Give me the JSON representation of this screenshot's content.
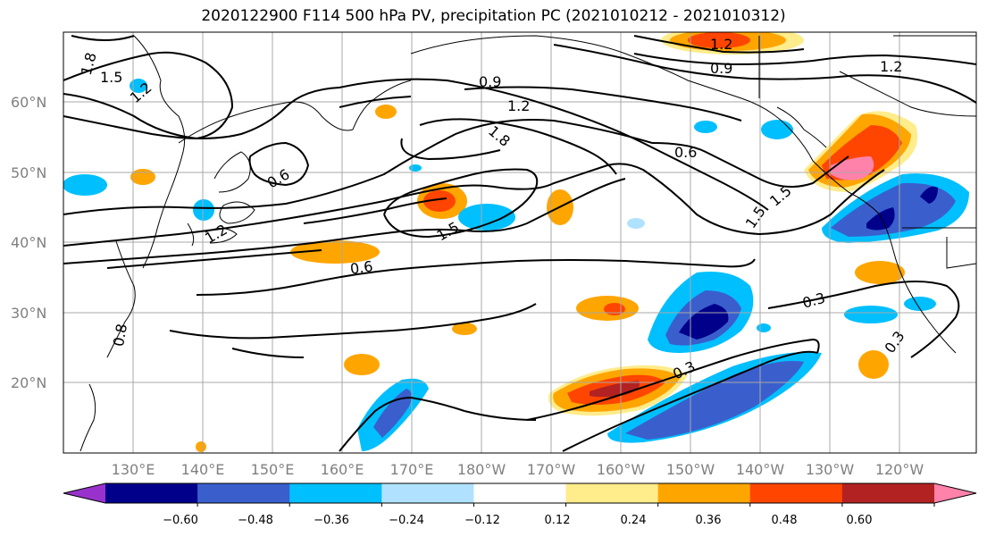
{
  "title": "2020122900 F114 500 hPa PV, precipitation PC (2021010212 - 2021010312)",
  "map": {
    "lat_labels": [
      "60°N",
      "50°N",
      "40°N",
      "30°N",
      "20°N"
    ],
    "lon_labels": [
      "130°E",
      "140°E",
      "150°E",
      "160°E",
      "170°E",
      "180°W",
      "170°W",
      "160°W",
      "150°W",
      "140°W",
      "130°W",
      "120°W"
    ],
    "lon_range": [
      120,
      251
    ],
    "lat_range": [
      10,
      70
    ],
    "contour_labels": [
      "1.8",
      "1.5",
      "1.2",
      "0.6",
      "0.9",
      "1.2",
      "1.8",
      "1.2",
      "0.9",
      "1.2",
      "0.6",
      "1.5",
      "1.5",
      "1.2",
      "1.5",
      "0.6",
      "0.3",
      "0.3",
      "0.3",
      "0.8"
    ]
  },
  "colorbar": {
    "ticks": [
      "−0.60",
      "−0.48",
      "−0.36",
      "−0.24",
      "−0.12",
      "0.12",
      "0.24",
      "0.36",
      "0.48",
      "0.60"
    ],
    "colors": [
      "#9932CC",
      "#00008B",
      "#3A5FCD",
      "#00BFFF",
      "#B0E2FF",
      "#FFFFFF",
      "#FFEC8B",
      "#FFA500",
      "#FF4500",
      "#B22222",
      "#FF82AB"
    ]
  }
}
